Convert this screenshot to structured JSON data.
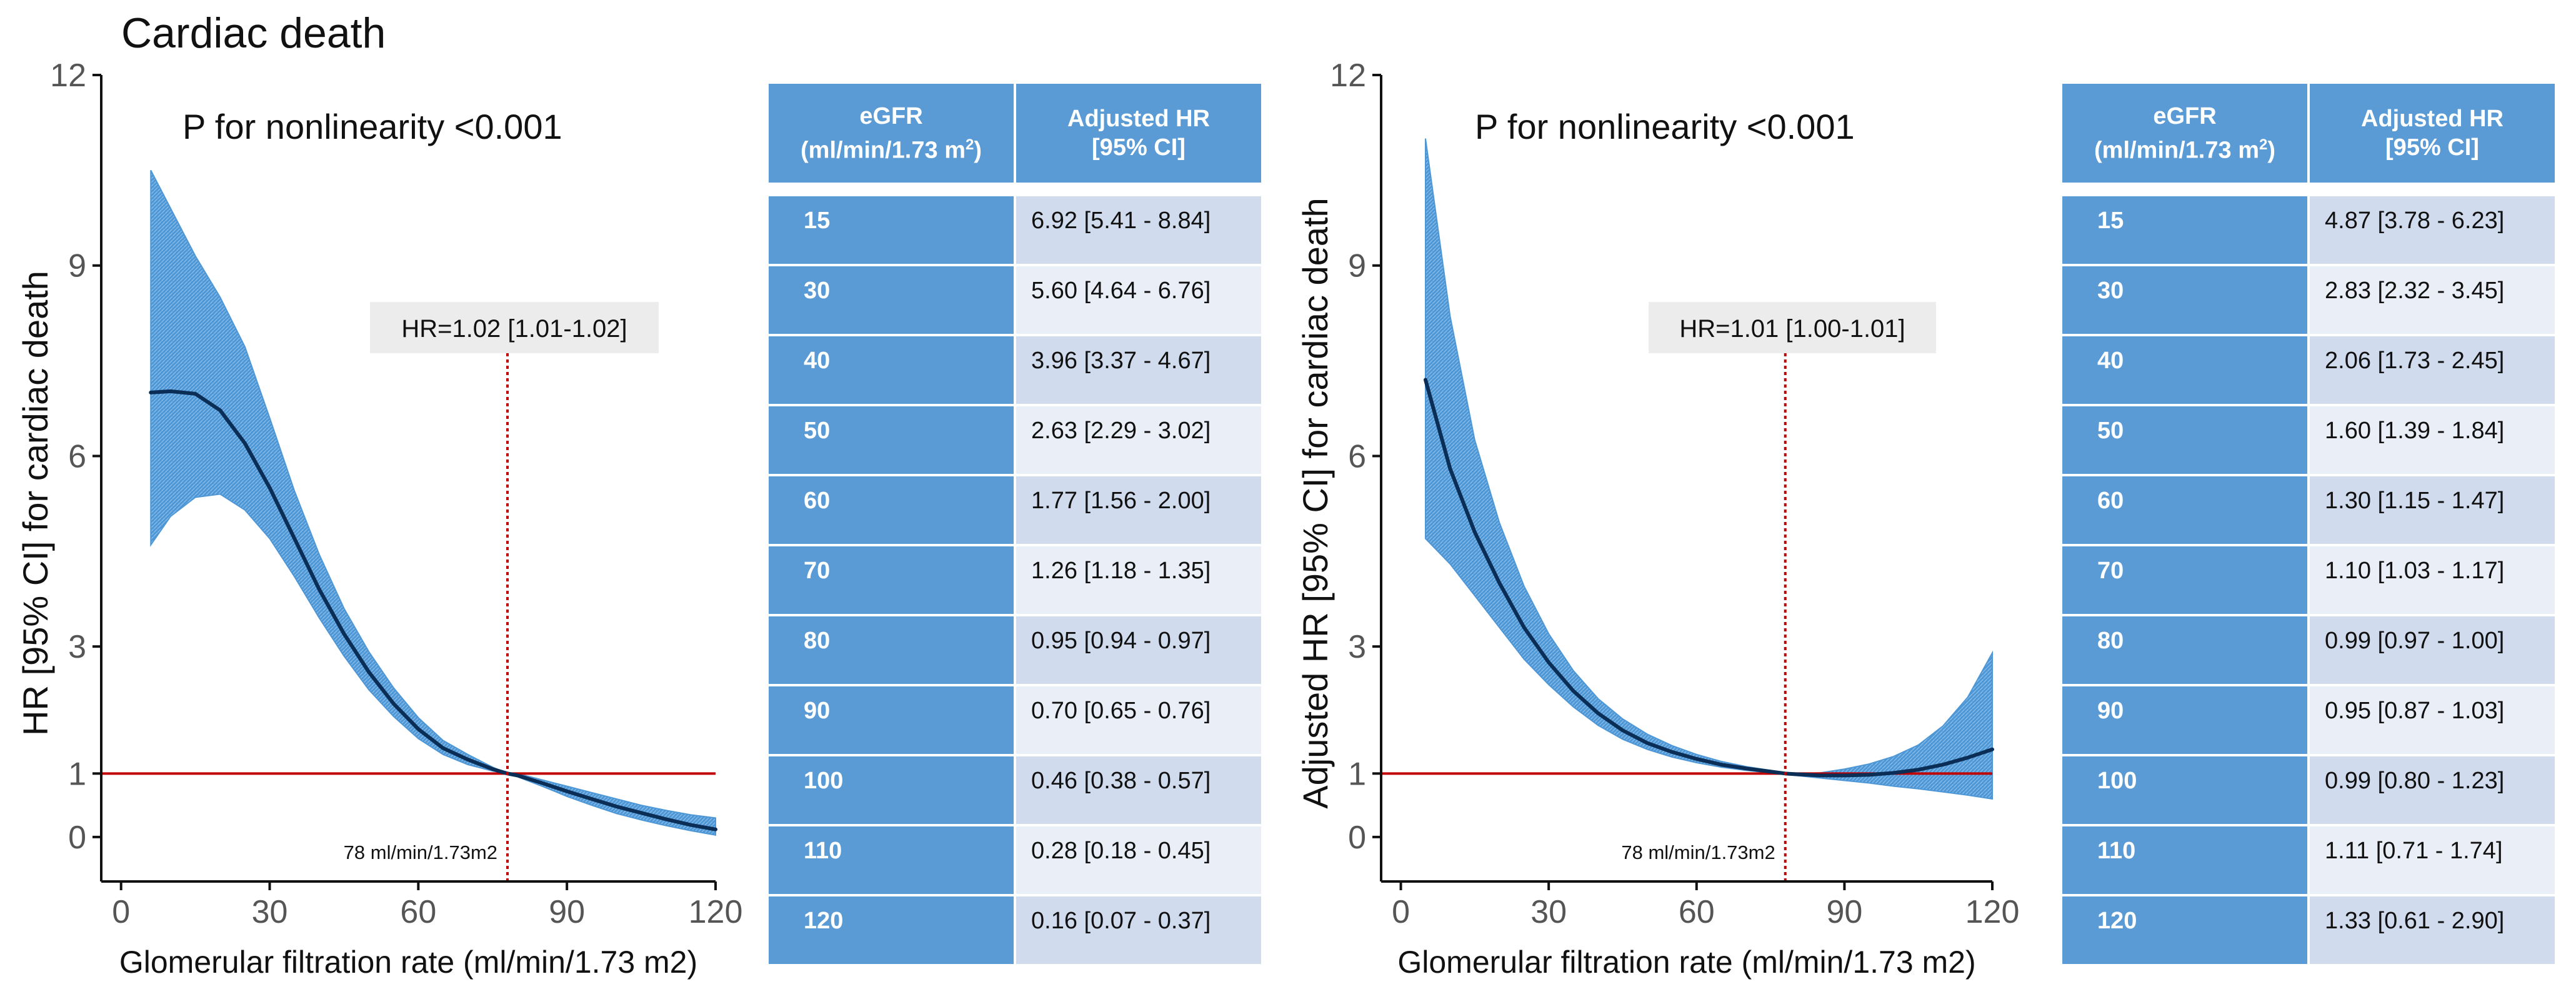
{
  "title": "Cardiac death",
  "colors": {
    "band": "#4e97d6",
    "band_hatch": "#8cc0ea",
    "curve": "#0b2e57",
    "reference_line": "#c00000",
    "header_bg": "#5b9bd5",
    "row_dark": "#d0dcee",
    "row_light": "#e9eef7"
  },
  "chart_data": [
    {
      "type": "line",
      "title": "",
      "annotation": "P for nonlinearity <0.001",
      "hr_label": "HR=1.02 [1.01-1.02]",
      "ref_label": "78 ml/min/1.73m2",
      "ref_x": 78,
      "ref_y": 1,
      "xlabel": "Glomerular filtration rate (ml/min/1.73 m2)",
      "ylabel": "HR [95% CI] for cardiac death",
      "xlim": [
        -4,
        120
      ],
      "ylim": [
        -0.7,
        12
      ],
      "xticks": [
        "0",
        "30",
        "60",
        "90",
        "120"
      ],
      "xtick_values": [
        0,
        30,
        60,
        90,
        120
      ],
      "yticks": [
        "0",
        "1",
        "3",
        "6",
        "9",
        "12"
      ],
      "ytick_values": [
        0,
        1,
        3,
        6,
        9,
        12
      ],
      "x": [
        6,
        10,
        15,
        20,
        25,
        30,
        35,
        40,
        45,
        50,
        55,
        60,
        65,
        70,
        75,
        78,
        80,
        85,
        90,
        95,
        100,
        105,
        110,
        115,
        120
      ],
      "series": [
        {
          "values": [
            7.0,
            7.02,
            6.98,
            6.72,
            6.2,
            5.5,
            4.7,
            3.9,
            3.2,
            2.6,
            2.1,
            1.7,
            1.4,
            1.22,
            1.07,
            1.0,
            0.97,
            0.85,
            0.72,
            0.6,
            0.48,
            0.38,
            0.28,
            0.19,
            0.12
          ],
          "lower": [
            4.6,
            5.05,
            5.35,
            5.4,
            5.15,
            4.7,
            4.1,
            3.45,
            2.85,
            2.32,
            1.9,
            1.55,
            1.3,
            1.14,
            1.04,
            1.0,
            0.95,
            0.8,
            0.64,
            0.5,
            0.37,
            0.27,
            0.18,
            0.1,
            0.03
          ],
          "upper": [
            10.5,
            9.9,
            9.15,
            8.5,
            7.72,
            6.6,
            5.45,
            4.45,
            3.6,
            2.92,
            2.35,
            1.88,
            1.52,
            1.3,
            1.1,
            1.0,
            1.0,
            0.9,
            0.8,
            0.7,
            0.6,
            0.5,
            0.42,
            0.35,
            0.3
          ]
        }
      ]
    },
    {
      "type": "line",
      "title": "",
      "annotation": "P for nonlinearity <0.001",
      "hr_label": "HR=1.01 [1.00-1.01]",
      "ref_label": "78 ml/min/1.73m2",
      "ref_x": 78,
      "ref_y": 1,
      "xlabel": "Glomerular filtration rate (ml/min/1.73 m2)",
      "ylabel": "Adjusted HR [95% CI] for cardiac death",
      "xlim": [
        -4,
        120
      ],
      "ylim": [
        -0.7,
        12
      ],
      "xticks": [
        "0",
        "30",
        "60",
        "90",
        "120"
      ],
      "xtick_values": [
        0,
        30,
        60,
        90,
        120
      ],
      "yticks": [
        "0",
        "1",
        "3",
        "6",
        "9",
        "12"
      ],
      "ytick_values": [
        0,
        1,
        3,
        6,
        9,
        12
      ],
      "x": [
        5,
        10,
        15,
        20,
        25,
        30,
        35,
        40,
        45,
        50,
        55,
        60,
        65,
        70,
        75,
        78,
        80,
        85,
        90,
        95,
        100,
        105,
        110,
        115,
        120
      ],
      "series": [
        {
          "values": [
            7.2,
            5.8,
            4.8,
            4.0,
            3.3,
            2.75,
            2.3,
            1.95,
            1.68,
            1.48,
            1.34,
            1.23,
            1.14,
            1.08,
            1.03,
            1.0,
            0.99,
            0.97,
            0.97,
            0.98,
            1.01,
            1.06,
            1.14,
            1.25,
            1.38
          ],
          "lower": [
            4.7,
            4.3,
            3.8,
            3.3,
            2.8,
            2.4,
            2.05,
            1.76,
            1.54,
            1.38,
            1.26,
            1.17,
            1.1,
            1.05,
            1.01,
            0.99,
            0.97,
            0.93,
            0.89,
            0.85,
            0.8,
            0.76,
            0.71,
            0.66,
            0.6
          ],
          "upper": [
            11.0,
            8.2,
            6.25,
            4.95,
            3.95,
            3.2,
            2.62,
            2.18,
            1.86,
            1.62,
            1.44,
            1.3,
            1.19,
            1.11,
            1.05,
            1.01,
            1.0,
            1.01,
            1.07,
            1.15,
            1.27,
            1.45,
            1.75,
            2.2,
            2.9
          ]
        }
      ]
    }
  ],
  "tables": [
    {
      "header": {
        "col1_line1": "eGFR",
        "col1_line2": "(ml/min/1.73 m",
        "col1_sup": "2",
        "col1_close": ")",
        "col2_line1": "Adjusted HR",
        "col2_line2": "[95% CI]"
      },
      "rows": [
        {
          "egfr": "15",
          "hr": "6.92 [5.41 - 8.84]"
        },
        {
          "egfr": "30",
          "hr": "5.60 [4.64 - 6.76]"
        },
        {
          "egfr": "40",
          "hr": "3.96 [3.37 - 4.67]"
        },
        {
          "egfr": "50",
          "hr": "2.63 [2.29 - 3.02]"
        },
        {
          "egfr": "60",
          "hr": "1.77 [1.56 - 2.00]"
        },
        {
          "egfr": "70",
          "hr": "1.26 [1.18 - 1.35]"
        },
        {
          "egfr": "80",
          "hr": "0.95 [0.94 - 0.97]"
        },
        {
          "egfr": "90",
          "hr": "0.70 [0.65 - 0.76]"
        },
        {
          "egfr": "100",
          "hr": "0.46 [0.38 - 0.57]"
        },
        {
          "egfr": "110",
          "hr": "0.28 [0.18 - 0.45]"
        },
        {
          "egfr": "120",
          "hr": "0.16 [0.07 - 0.37]"
        }
      ]
    },
    {
      "header": {
        "col1_line1": "eGFR",
        "col1_line2": "(ml/min/1.73 m",
        "col1_sup": "2",
        "col1_close": ")",
        "col2_line1": "Adjusted HR",
        "col2_line2": "[95% CI]"
      },
      "rows": [
        {
          "egfr": "15",
          "hr": "4.87 [3.78 - 6.23]"
        },
        {
          "egfr": "30",
          "hr": "2.83 [2.32 - 3.45]"
        },
        {
          "egfr": "40",
          "hr": "2.06 [1.73 - 2.45]"
        },
        {
          "egfr": "50",
          "hr": "1.60 [1.39 - 1.84]"
        },
        {
          "egfr": "60",
          "hr": "1.30 [1.15 - 1.47]"
        },
        {
          "egfr": "70",
          "hr": "1.10 [1.03 - 1.17]"
        },
        {
          "egfr": "80",
          "hr": "0.99 [0.97 - 1.00]"
        },
        {
          "egfr": "90",
          "hr": "0.95 [0.87 - 1.03]"
        },
        {
          "egfr": "100",
          "hr": "0.99 [0.80 - 1.23]"
        },
        {
          "egfr": "110",
          "hr": "1.11 [0.71 - 1.74]"
        },
        {
          "egfr": "120",
          "hr": "1.33 [0.61 - 2.90]"
        }
      ]
    }
  ]
}
